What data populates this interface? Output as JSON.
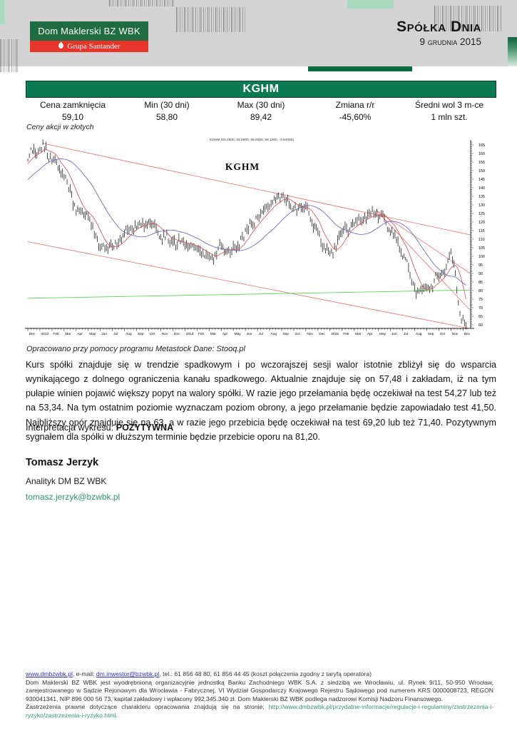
{
  "header": {
    "logo_line1": "Dom Maklerski BZ WBK",
    "logo_line2": "Grupa Santander",
    "title": "Spółka Dnia",
    "date": "9 grudnia 2015"
  },
  "company": {
    "banner": "KGHM"
  },
  "stats": {
    "columns": [
      {
        "label": "Cena zamknięcia",
        "value": "59,10"
      },
      {
        "label": "Min (30 dni)",
        "value": "58,80"
      },
      {
        "label": "Max (30 dni)",
        "value": "89,42"
      },
      {
        "label": "Zmiana r/r",
        "value": "-45,60%"
      },
      {
        "label": "Średni wol 3 m-ce",
        "value": "1 mln szt."
      }
    ]
  },
  "chart_units_note": "Ceny akcji w złotych",
  "chart_source": "Opracowano przy pomocy programu Metastock Dane: Stooq.pl",
  "chart_data": {
    "type": "line",
    "title": "KGHM",
    "metastock_header": "KGHM (62.2600, 63.5000, 58.8000, 59.1000, -3.84000)",
    "ylabel": "",
    "xlabel": "",
    "ylim": [
      57,
      168
    ],
    "ytick_min": 60,
    "ytick_max": 165,
    "ytick_step": 5,
    "x_labels": [
      "Dec",
      "2013",
      "Feb",
      "Mar",
      "Apr",
      "May",
      "Jun",
      "Jul",
      "Aug",
      "Sep",
      "Oct",
      "Nov",
      "Dec",
      "2014",
      "Feb",
      "Mar",
      "Apr",
      "May",
      "Jun",
      "Jul",
      "Aug",
      "Sep",
      "Oct",
      "Nov",
      "Dec",
      "2015",
      "Feb",
      "Mar",
      "Apr",
      "May",
      "Jun",
      "Jul",
      "Aug",
      "Sep",
      "Oct",
      "Nov",
      "Dec"
    ],
    "monthly_close": [
      158,
      162,
      157,
      149,
      128,
      121,
      104,
      107,
      114,
      117,
      118,
      113,
      111,
      108,
      102,
      98,
      106,
      105,
      112,
      122,
      131,
      137,
      128,
      126,
      112,
      103,
      114,
      118,
      123,
      126,
      117,
      101,
      79,
      82,
      90,
      99,
      59
    ],
    "last_ohlc": {
      "open": 62.26,
      "high": 63.5,
      "low": 58.8,
      "close": 59.1,
      "change": -3.84
    },
    "series": [
      {
        "name": "price-bars",
        "color": "#111111"
      },
      {
        "name": "short-moving-average",
        "color": "#d94a4a"
      },
      {
        "name": "long-moving-average",
        "color": "#5d5dc0"
      }
    ],
    "trend_lines": [
      {
        "name": "upper-channel",
        "m1": 1.2,
        "p1": 166,
        "m2": 36.6,
        "p2": 112.5,
        "color": "#f26b6b"
      },
      {
        "name": "lower-channel",
        "m1": 0,
        "p1": 108.5,
        "m2": 36.6,
        "p2": 57.8,
        "color": "#f26b6b"
      },
      {
        "name": "fan-line-1",
        "m1": 28.8,
        "p1": 127,
        "m2": 36.6,
        "p2": 90,
        "color": "#f26b6b"
      },
      {
        "name": "fan-line-2",
        "m1": 28.8,
        "p1": 127,
        "m2": 36.6,
        "p2": 68.5,
        "color": "#f26b6b"
      },
      {
        "name": "support-line",
        "m1": 0,
        "p1": 75.5,
        "m2": 36.6,
        "p2": 80.3,
        "color": "#4ade4a"
      }
    ],
    "legend_position": "none",
    "grid": false
  },
  "analysis": {
    "paragraph": "Kurs spółki znajduje się w trendzie spadkowym i po wczorajszej sesji walor istotnie zbliżył się do wsparcia wynikającego z dolnego ograniczenia kanału spadkowego. Aktualnie znajduje się on 57,48 i zakładam, iż na tym pułapie winien pojawić większy popyt na walory spółki. W razie jego przełamania będę oczekiwał na test 54,27 lub też na 53,34. Na tym ostatnim poziomie wyznaczam poziom obrony, a jego przełamanie będzie zapowiadało test 41,50. Najbliższy opór znajduje się na 63, a w razie jego przebicia będę oczekiwał na test 69,20 lub też 71,40. Pozytywnym sygnałem dla spółki w dłuższym terminie będzie przebicie oporu na 81,20.",
    "interpretation_label": "Interpretacja wykresu: ",
    "interpretation_value": "POZYTYWNA"
  },
  "author": {
    "name": "Tomasz Jerzyk",
    "role": "Analityk DM BZ WBK",
    "email": "tomasz.jerzyk@bzwbk.pl"
  },
  "footer": {
    "contact_parts": [
      {
        "text": "www.dmbzwbk.pl",
        "type": "link-blue",
        "name": "footer-website-link"
      },
      {
        "text": ", e-mail: ",
        "type": "plain",
        "name": "footer-text"
      },
      {
        "text": "dm.inwestor@bzwbk.pl",
        "type": "link-blue",
        "name": "footer-email-link"
      },
      {
        "text": ", tel.: 61 856 48 80, 61 856 44 45 (koszt połączenia zgodny z taryfą operatora)",
        "type": "plain",
        "name": "footer-text"
      }
    ],
    "legal1": "Dom Maklerski BZ WBK jest wyodrębnioną organizacyjnie jednostką Banku Zachodniego WBK S.A. z siedzibą we Wrocławiu, ul. Rynek 9/11, 50-950 Wrocław, zarejestrowanego w Sądzie Rejonowym dla Wrocławia - Fabrycznej, VI Wydział Gospodarczy Krajowego Rejestru Sądowego pod numerem KRS 0000008723, REGON 930041341, NIP 896 000 56 73, kapitał zakładowy i wpłacony 992.345.340 zł. Dom Maklerski BZ WBK podlega nadzorowi Komisji Nadzoru Finansowego.",
    "legal2_pre": "Zastrzeżenia prawne dotyczące charakteru opracowania znajdują się na stronie: ",
    "legal2_link": "http://www.dmbzwbk.pl/przydatne-informacje/regulacje-i-regulaminy/zastrzezenia-i-ryzyko/zastrzezenia-i-ryzyko.html",
    "legal2_post": "."
  },
  "colors": {
    "header_gray": "#d3d3d4",
    "brand_green_dark": "#1e6c3f",
    "brand_red": "#e8352b",
    "banner_green": "#0d7b51",
    "mint": "#a9d9bf",
    "teal_link": "#2f9674",
    "blue_link": "#2a2ad0",
    "chart_red": "#f26b6b",
    "chart_green": "#4ade4a",
    "ma_red": "#d94a4a",
    "ma_blue": "#5d5dc0"
  }
}
